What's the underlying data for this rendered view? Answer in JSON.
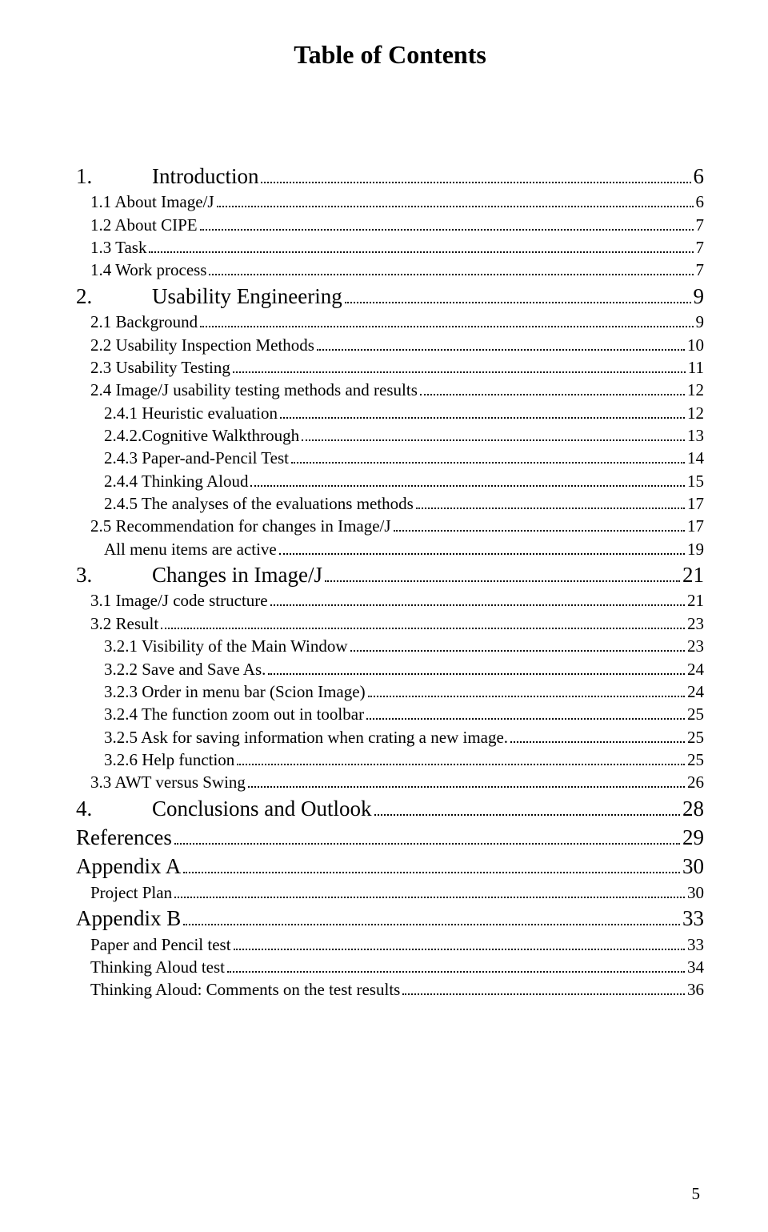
{
  "title": "Table of Contents",
  "page_number": "5",
  "font_family": "Times New Roman",
  "colors": {
    "text": "#000000",
    "background": "#ffffff"
  },
  "entries": [
    {
      "level": 0,
      "num": "1.",
      "label": "Introduction",
      "page": "6"
    },
    {
      "level": 1,
      "num": "",
      "label": "1.1 About Image/J",
      "page": "6"
    },
    {
      "level": 1,
      "num": "",
      "label": "1.2 About CIPE",
      "page": "7"
    },
    {
      "level": 1,
      "num": "",
      "label": "1.3 Task",
      "page": "7"
    },
    {
      "level": 1,
      "num": "",
      "label": "1.4 Work process",
      "page": "7"
    },
    {
      "level": 0,
      "num": "2.",
      "label": "Usability Engineering",
      "page": "9"
    },
    {
      "level": 1,
      "num": "",
      "label": "2.1 Background",
      "page": "9"
    },
    {
      "level": 1,
      "num": "",
      "label": "2.2 Usability Inspection Methods",
      "page": "10"
    },
    {
      "level": 1,
      "num": "",
      "label": "2.3 Usability Testing",
      "page": "11"
    },
    {
      "level": 1,
      "num": "",
      "label": "2.4 Image/J usability testing methods and results",
      "page": "12"
    },
    {
      "level": 2,
      "num": "",
      "label": "2.4.1 Heuristic evaluation",
      "page": "12"
    },
    {
      "level": 2,
      "num": "",
      "label": "2.4.2.Cognitive Walkthrough",
      "page": "13"
    },
    {
      "level": 2,
      "num": "",
      "label": "2.4.3 Paper-and-Pencil Test",
      "page": "14"
    },
    {
      "level": 2,
      "num": "",
      "label": "2.4.4 Thinking Aloud",
      "page": "15"
    },
    {
      "level": 2,
      "num": "",
      "label": "2.4.5 The analyses of the evaluations methods",
      "page": "17"
    },
    {
      "level": 1,
      "num": "",
      "label": "2.5 Recommendation for changes in Image/J",
      "page": "17"
    },
    {
      "level": 2,
      "num": "",
      "label": "All menu items are active",
      "page": "19"
    },
    {
      "level": 0,
      "num": "3.",
      "label": "Changes in Image/J",
      "page": "21"
    },
    {
      "level": 1,
      "num": "",
      "label": "3.1 Image/J code structure",
      "page": "21"
    },
    {
      "level": 1,
      "num": "",
      "label": "3.2 Result",
      "page": "23"
    },
    {
      "level": 2,
      "num": "",
      "label": "3.2.1 Visibility of the Main Window",
      "page": "23"
    },
    {
      "level": 2,
      "num": "",
      "label": "3.2.2 Save and Save As.",
      "page": "24"
    },
    {
      "level": 2,
      "num": "",
      "label": "3.2.3 Order in menu bar (Scion Image)",
      "page": "24"
    },
    {
      "level": 2,
      "num": "",
      "label": "3.2.4 The function zoom out in toolbar",
      "page": "25"
    },
    {
      "level": 2,
      "num": "",
      "label": "3.2.5 Ask for saving information when crating a new image.",
      "page": "25"
    },
    {
      "level": 2,
      "num": "",
      "label": "3.2.6 Help function",
      "page": "25"
    },
    {
      "level": 1,
      "num": "",
      "label": "3.3 AWT versus Swing",
      "page": "26"
    },
    {
      "level": 0,
      "num": "4.",
      "label": "Conclusions and Outlook",
      "page": "28"
    },
    {
      "level": 0,
      "num": "",
      "label": "References",
      "page": "29",
      "nonum": true
    },
    {
      "level": 0,
      "num": "",
      "label": "Appendix A",
      "page": "30",
      "nonum": true
    },
    {
      "level": 1,
      "num": "",
      "label": "Project Plan",
      "page": "30"
    },
    {
      "level": 0,
      "num": "",
      "label": "Appendix B",
      "page": "33",
      "nonum": true
    },
    {
      "level": 1,
      "num": "",
      "label": "Paper and Pencil test",
      "page": "33"
    },
    {
      "level": 1,
      "num": "",
      "label": "Thinking Aloud test",
      "page": "34"
    },
    {
      "level": 1,
      "num": "",
      "label": "Thinking Aloud: Comments on the test results",
      "page": "36"
    }
  ]
}
